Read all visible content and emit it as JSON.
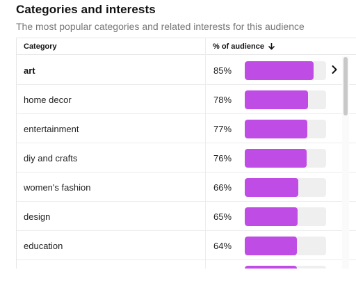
{
  "section": {
    "title": "Categories and interests",
    "subtitle": "The most popular categories and related interests for this audience"
  },
  "table": {
    "headers": {
      "category": "Category",
      "percent": "% of audience",
      "sort_icon": "arrow-down-icon"
    },
    "bar_color": "#c04ce6",
    "track_color": "#efefef",
    "rows": [
      {
        "category": "art",
        "percent": "85%",
        "value": 85,
        "highlighted": true
      },
      {
        "category": "home decor",
        "percent": "78%",
        "value": 78
      },
      {
        "category": "entertainment",
        "percent": "77%",
        "value": 77
      },
      {
        "category": "diy and crafts",
        "percent": "76%",
        "value": 76
      },
      {
        "category": "women's fashion",
        "percent": "66%",
        "value": 66
      },
      {
        "category": "design",
        "percent": "65%",
        "value": 65
      },
      {
        "category": "education",
        "percent": "64%",
        "value": 64
      },
      {
        "category": "",
        "percent": "",
        "value": 64
      }
    ]
  }
}
